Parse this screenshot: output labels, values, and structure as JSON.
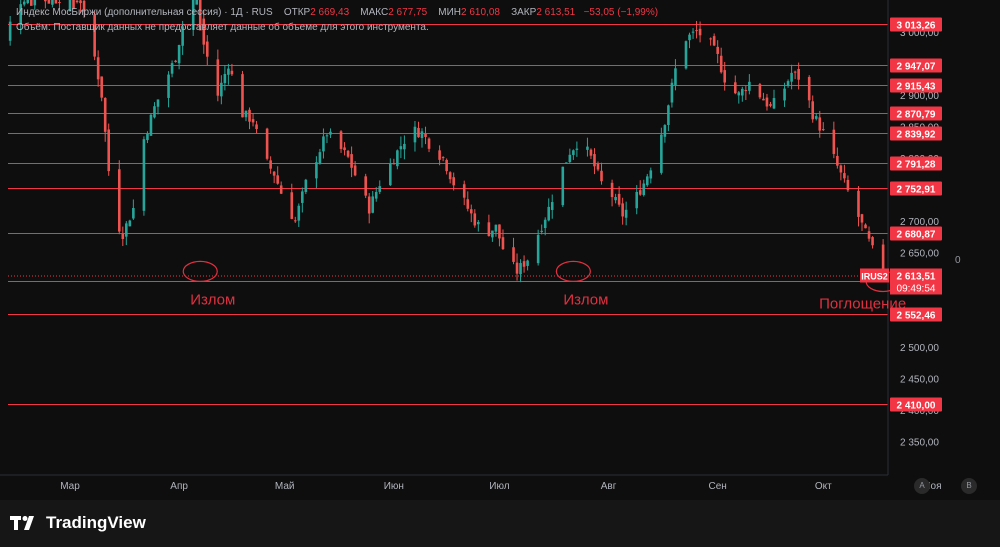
{
  "legend": {
    "instrument": "Индекс МосБиржи (дополнительная сессия) · 1Д · RUS",
    "open_label": "ОТКР",
    "open_value": "2 669,43",
    "high_label": "МАКС",
    "high_value": "2 677,75",
    "low_label": "МИН",
    "low_value": "2 610,08",
    "close_label": "ЗАКР",
    "close_value": "2 613,51",
    "change": "−53,05 (−1,99%)",
    "volume_note": "Объём: Поставщик данных не предоставляет данные об объеме для этого инструмента."
  },
  "price_badge": {
    "ticker": "IRUS2",
    "price": "2 613,51",
    "countdown": "09:49:54"
  },
  "zero_label": "0",
  "footer": {
    "brand": "TradingView",
    "btn_a": "A",
    "btn_b": "B"
  },
  "colors": {
    "up": "#26a69a",
    "down": "#ef5350",
    "level_line": "#f23645",
    "badge_bg": "#f23645",
    "annotation": "#e03040"
  },
  "chart_data": {
    "type": "candlestick",
    "y_range": [
      2300,
      3060
    ],
    "y_ticks": [
      {
        "value": 3000,
        "label": "3 000,00"
      },
      {
        "value": 2950,
        "label": "2 950,00"
      },
      {
        "value": 2900,
        "label": "2 900,00"
      },
      {
        "value": 2850,
        "label": "2 850,00"
      },
      {
        "value": 2800,
        "label": "2 800,00"
      },
      {
        "value": 2750,
        "label": "2 750,00"
      },
      {
        "value": 2700,
        "label": "2 700,00"
      },
      {
        "value": 2650,
        "label": "2 650,00"
      },
      {
        "value": 2550,
        "label": "2 550,00"
      },
      {
        "value": 2500,
        "label": "2 500,00"
      },
      {
        "value": 2450,
        "label": "2 450,00"
      },
      {
        "value": 2400,
        "label": "2 400,00"
      },
      {
        "value": 2350,
        "label": "2 350,00"
      }
    ],
    "x_months": [
      {
        "label": "Мар",
        "day": 0
      },
      {
        "label": "Апр",
        "day": 31
      },
      {
        "label": "Май",
        "day": 61
      },
      {
        "label": "Июн",
        "day": 92
      },
      {
        "label": "Июл",
        "day": 122
      },
      {
        "label": "Авг",
        "day": 153
      },
      {
        "label": "Сен",
        "day": 184
      },
      {
        "label": "Окт",
        "day": 214
      },
      {
        "label": "Ноя",
        "day": 245
      }
    ],
    "level_lines": [
      {
        "value": 3013.26,
        "label": "3 013,26"
      },
      {
        "value": 2947.07,
        "label": "2 947,07"
      },
      {
        "value": 2915.43,
        "label": "2 915,43"
      },
      {
        "value": 2870.79,
        "label": "2 870,79"
      },
      {
        "value": 2839.92,
        "label": "2 839,92"
      },
      {
        "value": 2791.28,
        "label": "2 791,28"
      },
      {
        "value": 2752.91,
        "label": "2 752,91"
      },
      {
        "value": 2680.87,
        "label": "2 680,87"
      },
      {
        "value": 2604.07,
        "label": "2 604,07"
      },
      {
        "value": 2552.46,
        "label": "2 552,46"
      },
      {
        "value": 2410.0,
        "label": "2 410,00"
      }
    ],
    "annotations": [
      {
        "text": "Излом",
        "day": 37,
        "value": 2620
      },
      {
        "text": "Излом",
        "day": 143,
        "value": 2620
      },
      {
        "text": "Поглощение",
        "day": 231,
        "value": 2604
      }
    ],
    "anchors": [
      {
        "day": -22,
        "close": 3005
      },
      {
        "day": -19,
        "close": 2960
      },
      {
        "day": -16,
        "close": 3040
      },
      {
        "day": -13,
        "close": 3055
      },
      {
        "day": -10,
        "close": 3055
      },
      {
        "day": -5,
        "close": 3055
      },
      {
        "day": 0,
        "close": 3055
      },
      {
        "day": 3,
        "close": 3050
      },
      {
        "day": 5,
        "close": 3000
      },
      {
        "day": 7,
        "close": 2960
      },
      {
        "day": 9,
        "close": 2900
      },
      {
        "day": 11,
        "close": 2780
      },
      {
        "day": 13,
        "close": 2700
      },
      {
        "day": 15,
        "close": 2680
      },
      {
        "day": 18,
        "close": 2720
      },
      {
        "day": 21,
        "close": 2830
      },
      {
        "day": 24,
        "close": 2880
      },
      {
        "day": 27,
        "close": 2920
      },
      {
        "day": 30,
        "close": 2960
      },
      {
        "day": 32,
        "close": 3010
      },
      {
        "day": 34,
        "close": 3050
      },
      {
        "day": 36,
        "close": 3060
      },
      {
        "day": 38,
        "close": 2980
      },
      {
        "day": 40,
        "close": 2940
      },
      {
        "day": 42,
        "close": 2900
      },
      {
        "day": 45,
        "close": 2950
      },
      {
        "day": 47,
        "close": 2910
      },
      {
        "day": 49,
        "close": 2870
      },
      {
        "day": 52,
        "close": 2860
      },
      {
        "day": 55,
        "close": 2800
      },
      {
        "day": 58,
        "close": 2775
      },
      {
        "day": 61,
        "close": 2730
      },
      {
        "day": 64,
        "close": 2700
      },
      {
        "day": 67,
        "close": 2760
      },
      {
        "day": 70,
        "close": 2800
      },
      {
        "day": 73,
        "close": 2840
      },
      {
        "day": 76,
        "close": 2820
      },
      {
        "day": 79,
        "close": 2800
      },
      {
        "day": 82,
        "close": 2760
      },
      {
        "day": 85,
        "close": 2720
      },
      {
        "day": 88,
        "close": 2760
      },
      {
        "day": 91,
        "close": 2790
      },
      {
        "day": 94,
        "close": 2820
      },
      {
        "day": 97,
        "close": 2845
      },
      {
        "day": 100,
        "close": 2840
      },
      {
        "day": 103,
        "close": 2815
      },
      {
        "day": 106,
        "close": 2800
      },
      {
        "day": 109,
        "close": 2760
      },
      {
        "day": 112,
        "close": 2730
      },
      {
        "day": 115,
        "close": 2700
      },
      {
        "day": 118,
        "close": 2680
      },
      {
        "day": 121,
        "close": 2690
      },
      {
        "day": 124,
        "close": 2640
      },
      {
        "day": 127,
        "close": 2620
      },
      {
        "day": 130,
        "close": 2640
      },
      {
        "day": 133,
        "close": 2680
      },
      {
        "day": 136,
        "close": 2720
      },
      {
        "day": 139,
        "close": 2770
      },
      {
        "day": 142,
        "close": 2810
      },
      {
        "day": 145,
        "close": 2830
      },
      {
        "day": 148,
        "close": 2800
      },
      {
        "day": 151,
        "close": 2760
      },
      {
        "day": 154,
        "close": 2740
      },
      {
        "day": 157,
        "close": 2710
      },
      {
        "day": 160,
        "close": 2730
      },
      {
        "day": 163,
        "close": 2760
      },
      {
        "day": 166,
        "close": 2800
      },
      {
        "day": 169,
        "close": 2860
      },
      {
        "day": 172,
        "close": 2940
      },
      {
        "day": 175,
        "close": 2990
      },
      {
        "day": 178,
        "close": 3000
      },
      {
        "day": 181,
        "close": 2990
      },
      {
        "day": 184,
        "close": 2960
      },
      {
        "day": 187,
        "close": 2910
      },
      {
        "day": 190,
        "close": 2900
      },
      {
        "day": 193,
        "close": 2920
      },
      {
        "day": 196,
        "close": 2900
      },
      {
        "day": 199,
        "close": 2880
      },
      {
        "day": 202,
        "close": 2900
      },
      {
        "day": 205,
        "close": 2935
      },
      {
        "day": 208,
        "close": 2925
      },
      {
        "day": 211,
        "close": 2870
      },
      {
        "day": 214,
        "close": 2840
      },
      {
        "day": 217,
        "close": 2800
      },
      {
        "day": 220,
        "close": 2760
      },
      {
        "day": 223,
        "close": 2720
      },
      {
        "day": 226,
        "close": 2680
      },
      {
        "day": 229,
        "close": 2640
      },
      {
        "day": 232,
        "close": 2615
      },
      {
        "day": 234,
        "close": 2620
      },
      {
        "day": 236,
        "close": 2670
      },
      {
        "day": 238,
        "close": 2613.51
      }
    ]
  }
}
